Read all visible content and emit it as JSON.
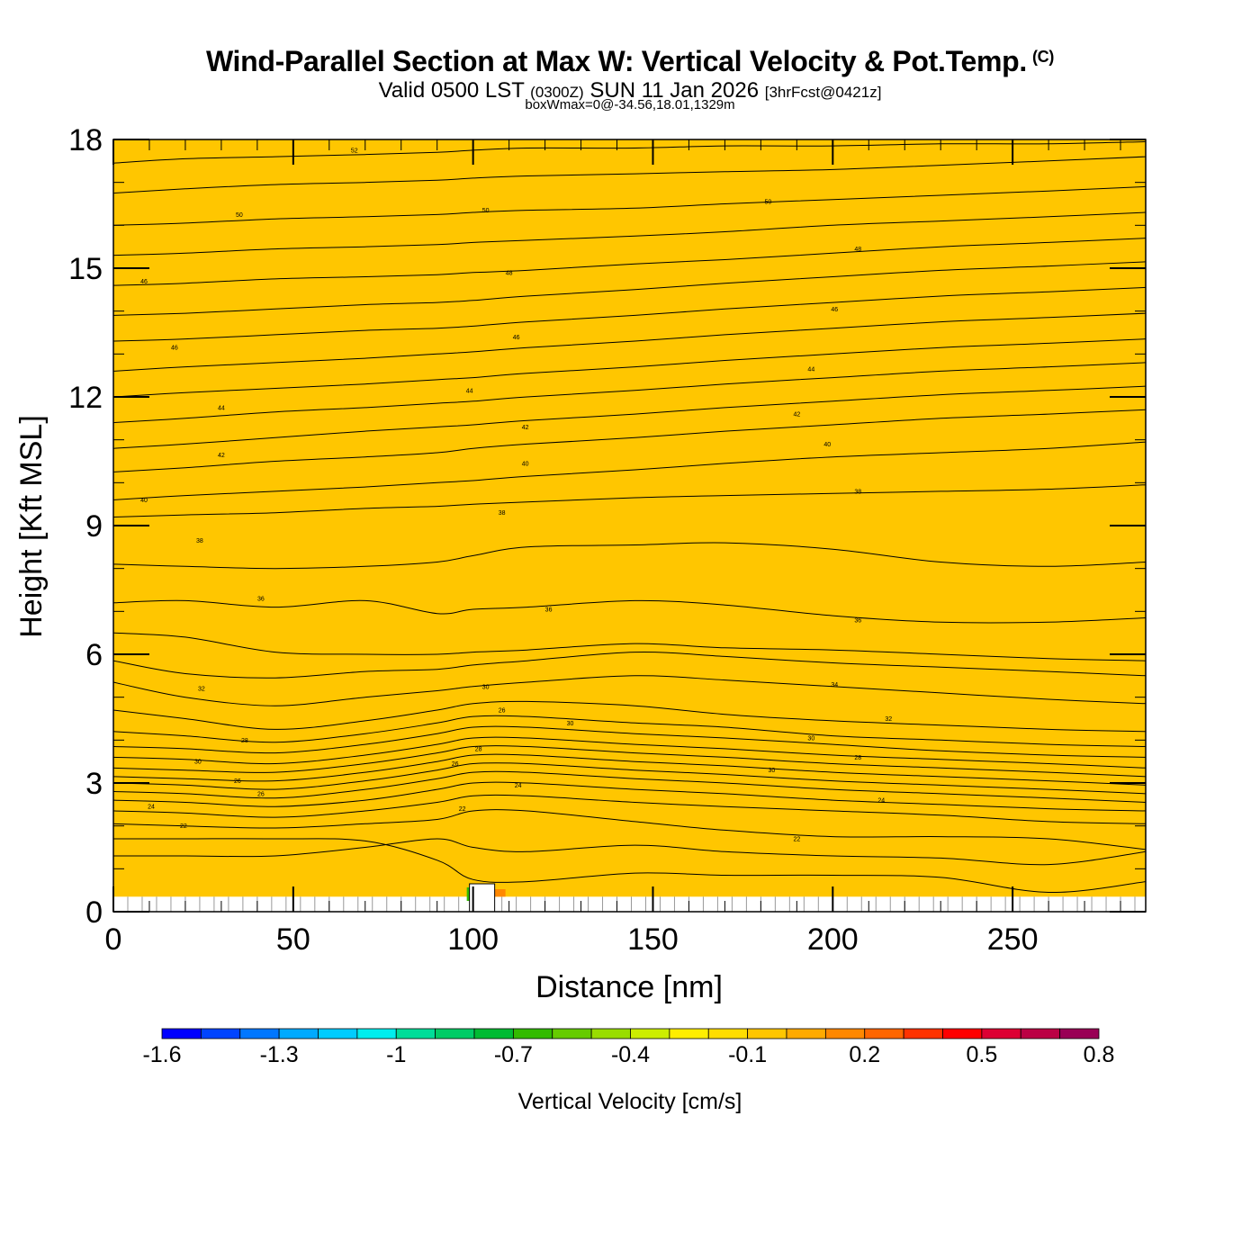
{
  "header": {
    "title": "Wind-Parallel Section at Max W: Vertical Velocity & Pot.Temp.",
    "copyright": "(C)",
    "valid_prefix": "Valid 0500 LST",
    "valid_zulu": "(0300Z)",
    "valid_date": "SUN 11 Jan 2026",
    "forecast": "[3hrFcst@0421z]",
    "box_info": "boxWmax=0@-34.56,18.01,1329m"
  },
  "chart_data": {
    "type": "contour",
    "title": "Wind-Parallel Section at Max W: Vertical Velocity & Pot.Temp.",
    "xlabel": "Distance [nm]",
    "ylabel": "Height [Kft MSL]",
    "xlim": [
      0,
      287
    ],
    "ylim": [
      0,
      18
    ],
    "x_ticks": [
      0,
      50,
      100,
      150,
      200,
      250
    ],
    "y_ticks": [
      0,
      3,
      6,
      9,
      12,
      15,
      18
    ],
    "fill_value": -0.1,
    "fill_color": "#ffc600",
    "terrain_height_kft": 0.35,
    "peak": {
      "x_range": [
        99,
        106
      ],
      "height_kft": 0.65
    },
    "contours": {
      "x": [
        0,
        20,
        45,
        70,
        90,
        100,
        115,
        145,
        170,
        200,
        230,
        260,
        287
      ],
      "lines": [
        {
          "y": [
            1.7,
            1.7,
            1.7,
            1.65,
            1.2,
            0.75,
            0.7,
            0.9,
            0.85,
            0.85,
            0.8,
            0.45,
            0.7
          ]
        },
        {
          "y": [
            1.3,
            1.3,
            1.3,
            1.5,
            1.7,
            1.5,
            1.4,
            1.55,
            1.4,
            1.3,
            1.25,
            1.1,
            1.4
          ]
        },
        {
          "y": [
            2.05,
            2.0,
            1.95,
            2.05,
            2.15,
            2.35,
            2.35,
            2.1,
            1.9,
            1.75,
            1.75,
            1.7,
            1.45
          ]
        },
        {
          "y": [
            2.35,
            2.3,
            2.2,
            2.35,
            2.55,
            2.7,
            2.7,
            2.55,
            2.45,
            2.35,
            2.25,
            2.1,
            2.05
          ]
        },
        {
          "y": [
            2.6,
            2.55,
            2.45,
            2.6,
            2.85,
            3.0,
            3.0,
            2.85,
            2.75,
            2.6,
            2.5,
            2.4,
            2.35
          ]
        },
        {
          "y": [
            2.8,
            2.75,
            2.65,
            2.85,
            3.1,
            3.25,
            3.25,
            3.1,
            3.0,
            2.85,
            2.75,
            2.65,
            2.55
          ]
        },
        {
          "y": [
            3.0,
            2.95,
            2.85,
            3.05,
            3.3,
            3.45,
            3.45,
            3.3,
            3.2,
            3.05,
            2.95,
            2.85,
            2.75
          ]
        },
        {
          "y": [
            3.15,
            3.1,
            3.05,
            3.25,
            3.5,
            3.65,
            3.65,
            3.5,
            3.4,
            3.25,
            3.15,
            3.05,
            2.95
          ]
        },
        {
          "y": [
            3.35,
            3.3,
            3.25,
            3.45,
            3.7,
            3.85,
            3.85,
            3.7,
            3.6,
            3.45,
            3.35,
            3.25,
            3.15
          ]
        },
        {
          "y": [
            3.6,
            3.55,
            3.45,
            3.65,
            3.9,
            4.05,
            4.05,
            3.9,
            3.8,
            3.65,
            3.55,
            3.45,
            3.35
          ]
        },
        {
          "y": [
            3.85,
            3.8,
            3.7,
            3.9,
            4.15,
            4.3,
            4.3,
            4.15,
            4.05,
            3.9,
            3.75,
            3.65,
            3.6
          ]
        },
        {
          "y": [
            4.2,
            4.1,
            3.95,
            4.15,
            4.4,
            4.55,
            4.55,
            4.4,
            4.3,
            4.1,
            4.0,
            3.9,
            3.85
          ]
        },
        {
          "y": [
            4.7,
            4.5,
            4.25,
            4.45,
            4.7,
            4.85,
            4.9,
            4.8,
            4.6,
            4.45,
            4.35,
            4.25,
            4.2
          ]
        },
        {
          "y": [
            5.35,
            5.0,
            4.8,
            5.0,
            5.15,
            5.25,
            5.35,
            5.5,
            5.4,
            5.25,
            5.1,
            4.95,
            4.85
          ]
        },
        {
          "y": [
            5.85,
            5.55,
            5.45,
            5.6,
            5.65,
            5.75,
            5.85,
            6.05,
            5.95,
            5.8,
            5.7,
            5.6,
            5.5
          ]
        },
        {
          "y": [
            6.5,
            6.4,
            6.05,
            6.0,
            6.0,
            6.05,
            6.1,
            6.25,
            6.15,
            6.1,
            6.0,
            5.9,
            5.85
          ]
        },
        {
          "y": [
            7.2,
            7.25,
            7.1,
            7.25,
            6.95,
            7.05,
            7.1,
            7.25,
            7.15,
            6.9,
            6.75,
            6.75,
            6.85
          ]
        },
        {
          "y": [
            8.1,
            8.05,
            8.0,
            8.05,
            8.15,
            8.3,
            8.5,
            8.55,
            8.6,
            8.45,
            8.15,
            8.05,
            8.15
          ]
        },
        {
          "y": [
            9.2,
            9.25,
            9.3,
            9.4,
            9.45,
            9.5,
            9.55,
            9.65,
            9.7,
            9.75,
            9.8,
            9.85,
            9.95
          ]
        },
        {
          "y": [
            9.6,
            9.7,
            9.8,
            9.9,
            10.0,
            10.05,
            10.15,
            10.3,
            10.45,
            10.6,
            10.7,
            10.8,
            10.95
          ]
        },
        {
          "y": [
            10.25,
            10.35,
            10.5,
            10.6,
            10.7,
            10.8,
            10.9,
            11.05,
            11.2,
            11.35,
            11.5,
            11.6,
            11.7
          ]
        },
        {
          "y": [
            10.8,
            10.9,
            11.05,
            11.2,
            11.3,
            11.35,
            11.45,
            11.6,
            11.75,
            11.9,
            12.05,
            12.15,
            12.25
          ]
        },
        {
          "y": [
            11.4,
            11.5,
            11.65,
            11.75,
            11.85,
            11.9,
            12.0,
            12.15,
            12.3,
            12.45,
            12.6,
            12.7,
            12.8
          ]
        },
        {
          "y": [
            12.0,
            12.1,
            12.2,
            12.3,
            12.4,
            12.45,
            12.55,
            12.7,
            12.85,
            13.0,
            13.15,
            13.25,
            13.35
          ]
        },
        {
          "y": [
            12.6,
            12.7,
            12.8,
            12.9,
            13.0,
            13.05,
            13.15,
            13.3,
            13.45,
            13.6,
            13.75,
            13.85,
            13.95
          ]
        },
        {
          "y": [
            13.3,
            13.35,
            13.45,
            13.55,
            13.6,
            13.65,
            13.75,
            13.9,
            14.05,
            14.2,
            14.35,
            14.45,
            14.55
          ]
        },
        {
          "y": [
            13.9,
            13.95,
            14.05,
            14.15,
            14.2,
            14.25,
            14.35,
            14.5,
            14.65,
            14.8,
            14.95,
            15.05,
            15.15
          ]
        },
        {
          "y": [
            14.6,
            14.65,
            14.75,
            14.8,
            14.85,
            14.9,
            14.95,
            15.1,
            15.2,
            15.35,
            15.5,
            15.6,
            15.7
          ]
        },
        {
          "y": [
            15.3,
            15.35,
            15.45,
            15.5,
            15.55,
            15.6,
            15.65,
            15.75,
            15.85,
            16.0,
            16.1,
            16.2,
            16.3
          ]
        },
        {
          "y": [
            16.0,
            16.05,
            16.15,
            16.2,
            16.25,
            16.3,
            16.35,
            16.4,
            16.5,
            16.6,
            16.7,
            16.8,
            16.9
          ]
        },
        {
          "y": [
            16.75,
            16.85,
            16.95,
            17.0,
            17.05,
            17.1,
            17.15,
            17.2,
            17.25,
            17.3,
            17.4,
            17.5,
            17.6
          ]
        },
        {
          "y": [
            17.45,
            17.55,
            17.6,
            17.65,
            17.7,
            17.75,
            17.8,
            17.8,
            17.85,
            17.85,
            17.9,
            17.9,
            17.95
          ]
        }
      ],
      "labels": [
        {
          "text": "52",
          "x": 67,
          "y": 17.75
        },
        {
          "text": "50",
          "x": 35,
          "y": 16.25
        },
        {
          "text": "50",
          "x": 103.5,
          "y": 16.35
        },
        {
          "text": "50",
          "x": 182,
          "y": 16.55
        },
        {
          "text": "48",
          "x": 207,
          "y": 15.45
        },
        {
          "text": "48",
          "x": 110,
          "y": 14.9
        },
        {
          "text": "46",
          "x": 8.5,
          "y": 14.7
        },
        {
          "text": "46",
          "x": 200.5,
          "y": 14.05
        },
        {
          "text": "46",
          "x": 112,
          "y": 13.4
        },
        {
          "text": "46",
          "x": 17,
          "y": 13.15
        },
        {
          "text": "44",
          "x": 194,
          "y": 12.65
        },
        {
          "text": "44",
          "x": 99,
          "y": 12.15
        },
        {
          "text": "44",
          "x": 30,
          "y": 11.75
        },
        {
          "text": "42",
          "x": 190,
          "y": 11.6
        },
        {
          "text": "42",
          "x": 114.5,
          "y": 11.3
        },
        {
          "text": "40",
          "x": 198.5,
          "y": 10.9
        },
        {
          "text": "42",
          "x": 30,
          "y": 10.65
        },
        {
          "text": "40",
          "x": 114.5,
          "y": 10.45
        },
        {
          "text": "38",
          "x": 207,
          "y": 9.8
        },
        {
          "text": "40",
          "x": 8.5,
          "y": 9.6
        },
        {
          "text": "38",
          "x": 108,
          "y": 9.3
        },
        {
          "text": "38",
          "x": 24,
          "y": 8.65
        },
        {
          "text": "36",
          "x": 41,
          "y": 7.3
        },
        {
          "text": "36",
          "x": 121,
          "y": 7.05
        },
        {
          "text": "36",
          "x": 207,
          "y": 6.8
        },
        {
          "text": "34",
          "x": 200.5,
          "y": 5.3
        },
        {
          "text": "32",
          "x": 24.5,
          "y": 5.2
        },
        {
          "text": "30",
          "x": 103.5,
          "y": 5.25
        },
        {
          "text": "26",
          "x": 108,
          "y": 4.7
        },
        {
          "text": "32",
          "x": 215.5,
          "y": 4.5
        },
        {
          "text": "30",
          "x": 127,
          "y": 4.4
        },
        {
          "text": "30",
          "x": 194,
          "y": 4.05
        },
        {
          "text": "28",
          "x": 36.5,
          "y": 4.0
        },
        {
          "text": "28",
          "x": 101.5,
          "y": 3.8
        },
        {
          "text": "28",
          "x": 207,
          "y": 3.6
        },
        {
          "text": "30",
          "x": 23.5,
          "y": 3.5
        },
        {
          "text": "26",
          "x": 95,
          "y": 3.45
        },
        {
          "text": "30",
          "x": 183,
          "y": 3.3
        },
        {
          "text": "26",
          "x": 34.5,
          "y": 3.05
        },
        {
          "text": "24",
          "x": 112.5,
          "y": 2.95
        },
        {
          "text": "26",
          "x": 41,
          "y": 2.75
        },
        {
          "text": "24",
          "x": 213.5,
          "y": 2.6
        },
        {
          "text": "24",
          "x": 10.5,
          "y": 2.45
        },
        {
          "text": "22",
          "x": 97,
          "y": 2.4
        },
        {
          "text": "22",
          "x": 19.5,
          "y": 2.0
        },
        {
          "text": "22",
          "x": 190,
          "y": 1.7
        }
      ]
    },
    "colorbar": {
      "label": "Vertical Velocity [cm/s]",
      "colors": [
        "#0000ff",
        "#0044ff",
        "#0077ff",
        "#00aaff",
        "#00ccff",
        "#00eeee",
        "#00dd99",
        "#00cc66",
        "#00bb33",
        "#33bb00",
        "#66cc00",
        "#99dd00",
        "#ccee00",
        "#ffee00",
        "#ffdd00",
        "#ffc600",
        "#ffaa00",
        "#ff8800",
        "#ff6600",
        "#ff3300",
        "#ff0000",
        "#dd0033",
        "#bb0044",
        "#990055"
      ],
      "tick_values": [
        "-1.6",
        "-1.3",
        "-1",
        "-0.7",
        "-0.4",
        "-0.1",
        "0.2",
        "0.5",
        "0.8"
      ]
    }
  }
}
